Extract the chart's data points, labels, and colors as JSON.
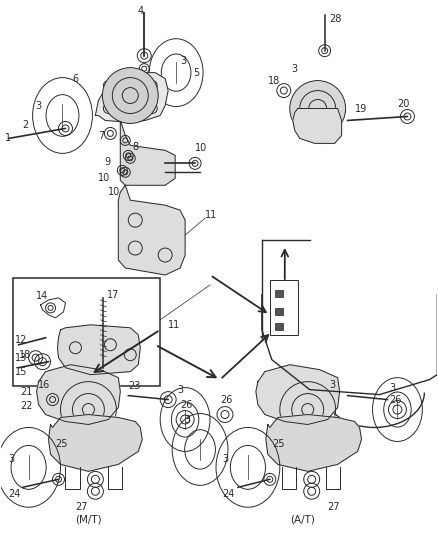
{
  "bg_color": "#f5f5f5",
  "line_color": "#2a2a2a",
  "fig_width": 4.38,
  "fig_height": 5.33,
  "dpi": 100
}
